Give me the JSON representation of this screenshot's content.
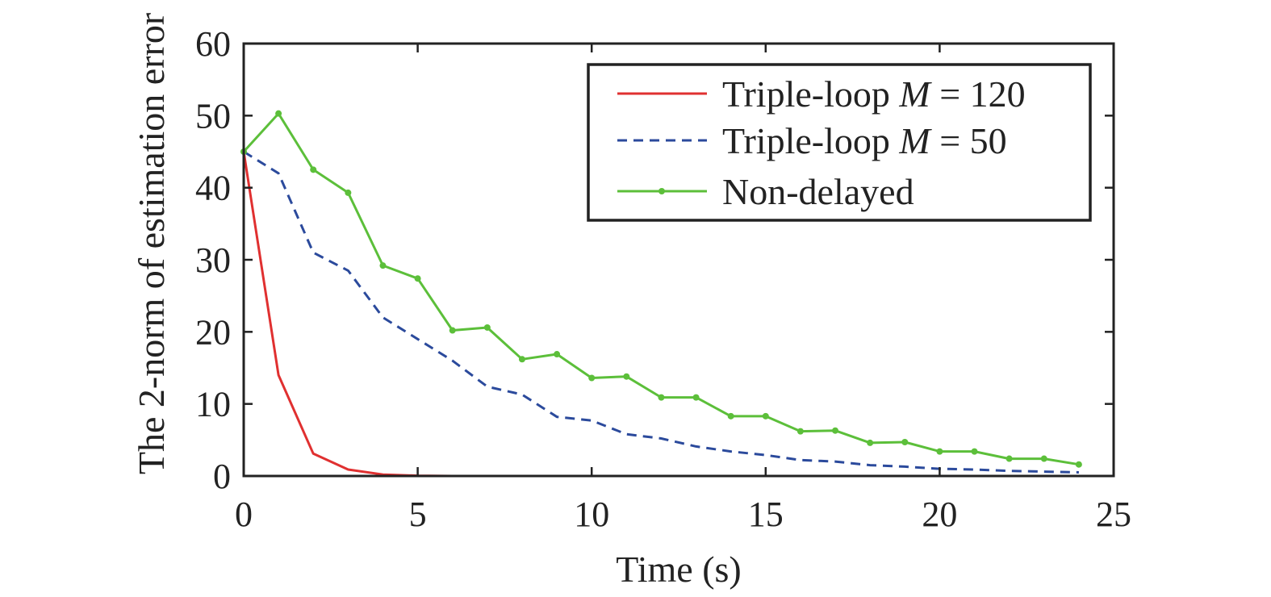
{
  "chart_data": {
    "type": "line",
    "xlabel": "Time (s)",
    "ylabel": "The 2-norm of estimation error",
    "xlim": [
      0,
      25
    ],
    "ylim": [
      0,
      60
    ],
    "xticks": [
      0,
      5,
      10,
      15,
      20,
      25
    ],
    "yticks": [
      0,
      10,
      20,
      30,
      40,
      50,
      60
    ],
    "grid": false,
    "legend_position": "top-right",
    "series": [
      {
        "name": "Triple-loop M = 120",
        "legend_parts": {
          "prefix": "Triple-loop ",
          "var": "M",
          "suffix": " = 120"
        },
        "color": "#e03030",
        "style": "solid",
        "markers": false,
        "x": [
          0,
          1,
          2,
          3,
          4,
          5,
          6,
          7,
          8,
          9,
          10,
          11,
          12,
          13,
          14,
          15,
          16,
          17,
          18,
          19,
          20,
          21,
          22,
          23,
          24
        ],
        "y": [
          45,
          14,
          3.1,
          0.9,
          0.2,
          0.05,
          0,
          0,
          0,
          0,
          0,
          0,
          0,
          0,
          0,
          0,
          0,
          0,
          0,
          0,
          0,
          0,
          0,
          0,
          0
        ]
      },
      {
        "name": "Triple-loop M = 50",
        "legend_parts": {
          "prefix": "Triple-loop ",
          "var": "M",
          "suffix": " = 50"
        },
        "color": "#2b4a9c",
        "style": "dashed",
        "markers": false,
        "x": [
          0,
          1,
          2,
          3,
          4,
          5,
          6,
          7,
          8,
          9,
          10,
          11,
          12,
          13,
          14,
          15,
          16,
          17,
          18,
          19,
          20,
          21,
          22,
          23,
          24
        ],
        "y": [
          45,
          42,
          31,
          28.5,
          22,
          19,
          16,
          12.4,
          11.3,
          8.2,
          7.7,
          5.8,
          5.2,
          4.1,
          3.4,
          2.9,
          2.2,
          2.0,
          1.5,
          1.3,
          1.0,
          0.9,
          0.7,
          0.6,
          0.5
        ]
      },
      {
        "name": "Non-delayed",
        "legend_parts": {
          "prefix": "Non-delayed",
          "var": "",
          "suffix": ""
        },
        "color": "#5cbf3a",
        "style": "solid",
        "markers": true,
        "x": [
          0,
          1,
          2,
          3,
          4,
          5,
          6,
          7,
          8,
          9,
          10,
          11,
          12,
          13,
          14,
          15,
          16,
          17,
          18,
          19,
          20,
          21,
          22,
          23,
          24
        ],
        "y": [
          45,
          50.3,
          42.5,
          39.3,
          29.2,
          27.4,
          20.2,
          20.6,
          16.2,
          16.9,
          13.6,
          13.8,
          10.9,
          10.9,
          8.3,
          8.3,
          6.2,
          6.3,
          4.6,
          4.7,
          3.4,
          3.4,
          2.4,
          2.4,
          1.6
        ]
      }
    ]
  }
}
